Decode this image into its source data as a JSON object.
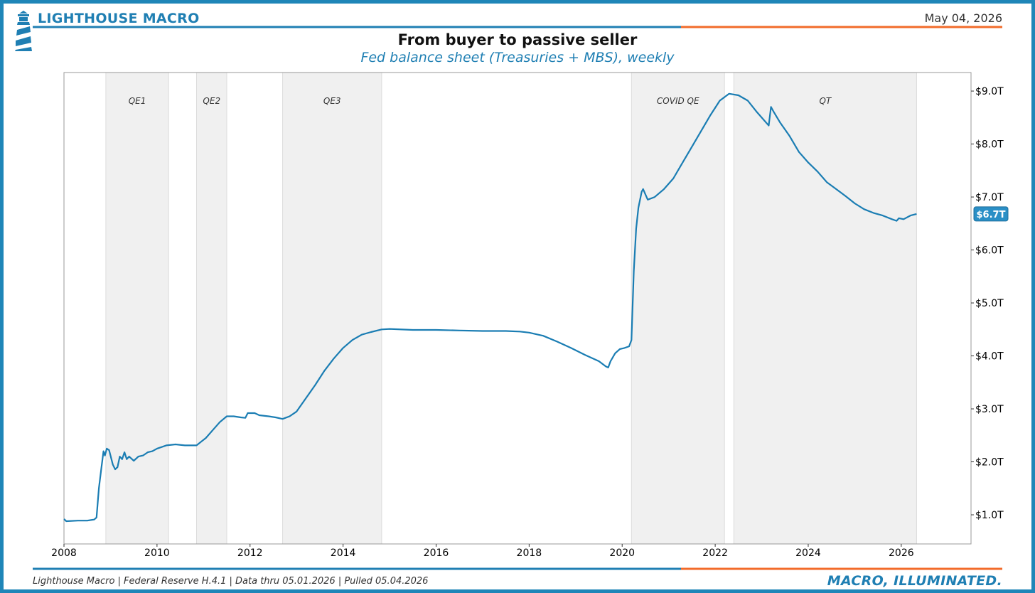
{
  "header": {
    "brand": "LIGHTHOUSE MACRO",
    "date": "May 04, 2026"
  },
  "footer": {
    "source": "Lighthouse Macro | Federal Reserve H.4.1 | Data thru 05.01.2026 | Pulled 05.04.2026",
    "tagline": "MACRO, ILLUMINATED."
  },
  "colors": {
    "brand_blue": "#1f7fb3",
    "accent_orange": "#f26b2a",
    "series_line": "#1a7db3",
    "shade": "#f0f0f0"
  },
  "icons": {
    "logo": "lighthouse-icon"
  },
  "chart_data": {
    "type": "line",
    "title": "From buyer to passive seller",
    "subtitle": "Fed balance sheet (Treasuries + MBS), weekly",
    "xlabel": "",
    "ylabel": "",
    "xlim": [
      2008.0,
      2027.5
    ],
    "ylim": [
      0.45,
      9.35
    ],
    "y_axis_position": "right",
    "grid": false,
    "x_ticks": [
      {
        "value": 2008,
        "label": "2008"
      },
      {
        "value": 2010,
        "label": "2010"
      },
      {
        "value": 2012,
        "label": "2012"
      },
      {
        "value": 2014,
        "label": "2014"
      },
      {
        "value": 2016,
        "label": "2016"
      },
      {
        "value": 2018,
        "label": "2018"
      },
      {
        "value": 2020,
        "label": "2020"
      },
      {
        "value": 2022,
        "label": "2022"
      },
      {
        "value": 2024,
        "label": "2024"
      },
      {
        "value": 2026,
        "label": "2026"
      }
    ],
    "y_ticks": [
      {
        "value": 1,
        "label": "$1.0T"
      },
      {
        "value": 2,
        "label": "$2.0T"
      },
      {
        "value": 3,
        "label": "$3.0T"
      },
      {
        "value": 4,
        "label": "$4.0T"
      },
      {
        "value": 5,
        "label": "$5.0T"
      },
      {
        "value": 6,
        "label": "$6.0T"
      },
      {
        "value": 7,
        "label": "$7.0T"
      },
      {
        "value": 8,
        "label": "$8.0T"
      },
      {
        "value": 9,
        "label": "$9.0T"
      }
    ],
    "shaded_regions": [
      {
        "label": "QE1",
        "start": 2008.9,
        "end": 2010.25
      },
      {
        "label": "QE2",
        "start": 2010.85,
        "end": 2011.5
      },
      {
        "label": "QE3",
        "start": 2012.7,
        "end": 2014.83
      },
      {
        "label": "COVID QE",
        "start": 2020.2,
        "end": 2022.2
      },
      {
        "label": "QT",
        "start": 2022.4,
        "end": 2026.33
      }
    ],
    "last_value_label": "$6.7T",
    "series": [
      {
        "values": [
          [
            2008.0,
            0.92
          ],
          [
            2008.05,
            0.88
          ],
          [
            2008.3,
            0.89
          ],
          [
            2008.5,
            0.89
          ],
          [
            2008.65,
            0.91
          ],
          [
            2008.7,
            0.95
          ],
          [
            2008.75,
            1.5
          ],
          [
            2008.8,
            1.85
          ],
          [
            2008.85,
            2.2
          ],
          [
            2008.88,
            2.12
          ],
          [
            2008.92,
            2.25
          ],
          [
            2008.97,
            2.22
          ],
          [
            2009.05,
            1.95
          ],
          [
            2009.1,
            1.86
          ],
          [
            2009.15,
            1.9
          ],
          [
            2009.2,
            2.1
          ],
          [
            2009.25,
            2.05
          ],
          [
            2009.3,
            2.18
          ],
          [
            2009.35,
            2.05
          ],
          [
            2009.4,
            2.1
          ],
          [
            2009.5,
            2.02
          ],
          [
            2009.6,
            2.1
          ],
          [
            2009.7,
            2.12
          ],
          [
            2009.8,
            2.18
          ],
          [
            2009.9,
            2.2
          ],
          [
            2010.0,
            2.25
          ],
          [
            2010.2,
            2.31
          ],
          [
            2010.4,
            2.33
          ],
          [
            2010.6,
            2.31
          ],
          [
            2010.85,
            2.31
          ],
          [
            2010.95,
            2.38
          ],
          [
            2011.05,
            2.45
          ],
          [
            2011.2,
            2.6
          ],
          [
            2011.35,
            2.75
          ],
          [
            2011.5,
            2.86
          ],
          [
            2011.65,
            2.86
          ],
          [
            2011.8,
            2.84
          ],
          [
            2011.9,
            2.83
          ],
          [
            2011.95,
            2.92
          ],
          [
            2012.1,
            2.92
          ],
          [
            2012.2,
            2.88
          ],
          [
            2012.4,
            2.86
          ],
          [
            2012.55,
            2.84
          ],
          [
            2012.7,
            2.81
          ],
          [
            2012.85,
            2.86
          ],
          [
            2013.0,
            2.95
          ],
          [
            2013.2,
            3.2
          ],
          [
            2013.4,
            3.45
          ],
          [
            2013.6,
            3.72
          ],
          [
            2013.8,
            3.95
          ],
          [
            2014.0,
            4.15
          ],
          [
            2014.2,
            4.3
          ],
          [
            2014.4,
            4.4
          ],
          [
            2014.6,
            4.45
          ],
          [
            2014.83,
            4.5
          ],
          [
            2015.0,
            4.51
          ],
          [
            2015.5,
            4.49
          ],
          [
            2016.0,
            4.49
          ],
          [
            2016.5,
            4.48
          ],
          [
            2017.0,
            4.47
          ],
          [
            2017.5,
            4.47
          ],
          [
            2017.8,
            4.46
          ],
          [
            2018.0,
            4.44
          ],
          [
            2018.3,
            4.38
          ],
          [
            2018.6,
            4.27
          ],
          [
            2018.9,
            4.15
          ],
          [
            2019.2,
            4.02
          ],
          [
            2019.5,
            3.9
          ],
          [
            2019.65,
            3.8
          ],
          [
            2019.7,
            3.78
          ],
          [
            2019.75,
            3.9
          ],
          [
            2019.85,
            4.05
          ],
          [
            2019.95,
            4.13
          ],
          [
            2020.05,
            4.15
          ],
          [
            2020.15,
            4.18
          ],
          [
            2020.2,
            4.3
          ],
          [
            2020.25,
            5.6
          ],
          [
            2020.3,
            6.4
          ],
          [
            2020.35,
            6.8
          ],
          [
            2020.42,
            7.1
          ],
          [
            2020.45,
            7.15
          ],
          [
            2020.5,
            7.05
          ],
          [
            2020.55,
            6.95
          ],
          [
            2020.7,
            7.0
          ],
          [
            2020.9,
            7.15
          ],
          [
            2021.1,
            7.35
          ],
          [
            2021.3,
            7.65
          ],
          [
            2021.5,
            7.95
          ],
          [
            2021.7,
            8.25
          ],
          [
            2021.9,
            8.55
          ],
          [
            2022.1,
            8.82
          ],
          [
            2022.3,
            8.95
          ],
          [
            2022.5,
            8.92
          ],
          [
            2022.7,
            8.82
          ],
          [
            2022.9,
            8.6
          ],
          [
            2023.1,
            8.4
          ],
          [
            2023.15,
            8.35
          ],
          [
            2023.2,
            8.7
          ],
          [
            2023.25,
            8.62
          ],
          [
            2023.4,
            8.4
          ],
          [
            2023.6,
            8.15
          ],
          [
            2023.8,
            7.85
          ],
          [
            2024.0,
            7.65
          ],
          [
            2024.2,
            7.48
          ],
          [
            2024.4,
            7.28
          ],
          [
            2024.6,
            7.15
          ],
          [
            2024.8,
            7.02
          ],
          [
            2025.0,
            6.88
          ],
          [
            2025.2,
            6.77
          ],
          [
            2025.4,
            6.7
          ],
          [
            2025.6,
            6.65
          ],
          [
            2025.8,
            6.58
          ],
          [
            2025.9,
            6.55
          ],
          [
            2025.95,
            6.6
          ],
          [
            2026.05,
            6.58
          ],
          [
            2026.2,
            6.65
          ],
          [
            2026.33,
            6.68
          ]
        ]
      }
    ]
  }
}
